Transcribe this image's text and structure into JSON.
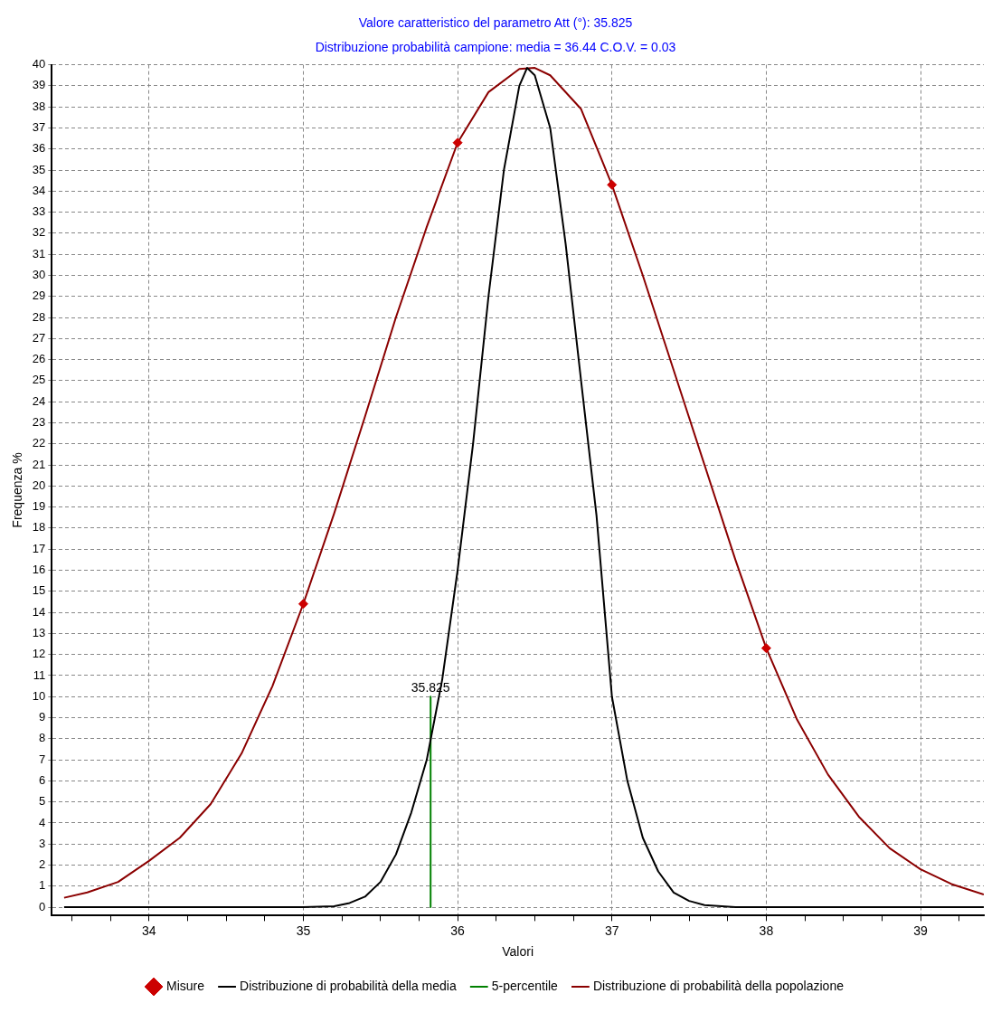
{
  "chart_data": {
    "type": "line",
    "title": "Valore caratteristico del parametro Att (°): 35.825",
    "subtitle": "Distribuzione probabilità campione: media = 36.44 C.O.V. = 0.03",
    "xlabel": "Valori",
    "ylabel": "Frequenza %",
    "xlim": [
      33.37,
      39.41
    ],
    "xticks": [
      {
        "value": 33.5,
        "label": null
      },
      {
        "value": 33.75,
        "label": null
      },
      34,
      {
        "value": 34.25,
        "label": null
      },
      {
        "value": 34.5,
        "label": null
      },
      {
        "value": 34.75,
        "label": null
      },
      35,
      {
        "value": 35.25,
        "label": null
      },
      {
        "value": 35.5,
        "label": null
      },
      {
        "value": 35.75,
        "label": null
      },
      36,
      {
        "value": 36.25,
        "label": null
      },
      {
        "value": 36.5,
        "label": null
      },
      {
        "value": 36.75,
        "label": null
      },
      37,
      {
        "value": 37.25,
        "label": null
      },
      {
        "value": 37.5,
        "label": null
      },
      {
        "value": 37.75,
        "label": null
      },
      38,
      {
        "value": 38.25,
        "label": null
      },
      {
        "value": 38.5,
        "label": null
      },
      {
        "value": 38.75,
        "label": null
      },
      39,
      {
        "value": 39.25,
        "label": null
      }
    ],
    "ylim": [
      -0.4,
      40
    ],
    "yticks": [
      0,
      1,
      2,
      3,
      4,
      5,
      6,
      7,
      8,
      9,
      10,
      11,
      12,
      13,
      14,
      15,
      16,
      17,
      18,
      19,
      20,
      21,
      22,
      23,
      24,
      25,
      26,
      27,
      28,
      29,
      30,
      31,
      32,
      33,
      34,
      35,
      36,
      37,
      38,
      39,
      40
    ],
    "grid": true,
    "legend": "bottom",
    "line_style": "solid",
    "series": [
      {
        "name": "Misure",
        "type": "scatter",
        "marker": "diamond",
        "color": "#cc0000",
        "x": [
          35,
          36,
          37,
          38
        ],
        "values": [
          14.4,
          36.3,
          34.3,
          12.3
        ]
      },
      {
        "name": "Distribuzione di probabilità della media",
        "color": "#000000",
        "x": [
          33.45,
          35.0,
          35.2,
          35.3,
          35.4,
          35.5,
          35.6,
          35.7,
          35.8,
          35.9,
          36.0,
          36.1,
          36.2,
          36.3,
          36.4,
          36.45,
          36.5,
          36.6,
          36.7,
          36.8,
          36.9,
          37.0,
          37.1,
          37.2,
          37.3,
          37.4,
          37.5,
          37.6,
          37.8,
          39.41
        ],
        "values": [
          0,
          0,
          0.05,
          0.2,
          0.5,
          1.2,
          2.5,
          4.5,
          7,
          10.8,
          16,
          22,
          29,
          35,
          39,
          39.85,
          39.5,
          37,
          31.5,
          25,
          18.6,
          10,
          6,
          3.3,
          1.7,
          0.7,
          0.3,
          0.1,
          0,
          0
        ]
      },
      {
        "name": "5-percentile",
        "color": "#008000",
        "x": [
          35.825,
          35.825
        ],
        "values": [
          10,
          0
        ]
      },
      {
        "name": "Distribuzione di probabilità della popolazione",
        "color": "#8b0000",
        "x": [
          33.45,
          33.6,
          33.8,
          34,
          34.2,
          34.4,
          34.6,
          34.8,
          35,
          35.2,
          35.4,
          35.6,
          35.8,
          36,
          36.2,
          36.4,
          36.5,
          36.6,
          36.8,
          37,
          37.2,
          37.4,
          37.6,
          37.8,
          38,
          38.2,
          38.4,
          38.6,
          38.8,
          39,
          39.2,
          39.41
        ],
        "values": [
          0.45,
          0.7,
          1.2,
          2.2,
          3.3,
          4.9,
          7.3,
          10.5,
          14.4,
          18.7,
          23.3,
          28,
          32.3,
          36.3,
          38.7,
          39.8,
          39.85,
          39.5,
          37.9,
          34.3,
          30,
          25.5,
          21,
          16.5,
          12.3,
          8.9,
          6.3,
          4.3,
          2.8,
          1.8,
          1.1,
          0.6
        ]
      }
    ],
    "annotations": [
      {
        "text": "35.825",
        "x": 35.825,
        "y": 10
      }
    ]
  }
}
